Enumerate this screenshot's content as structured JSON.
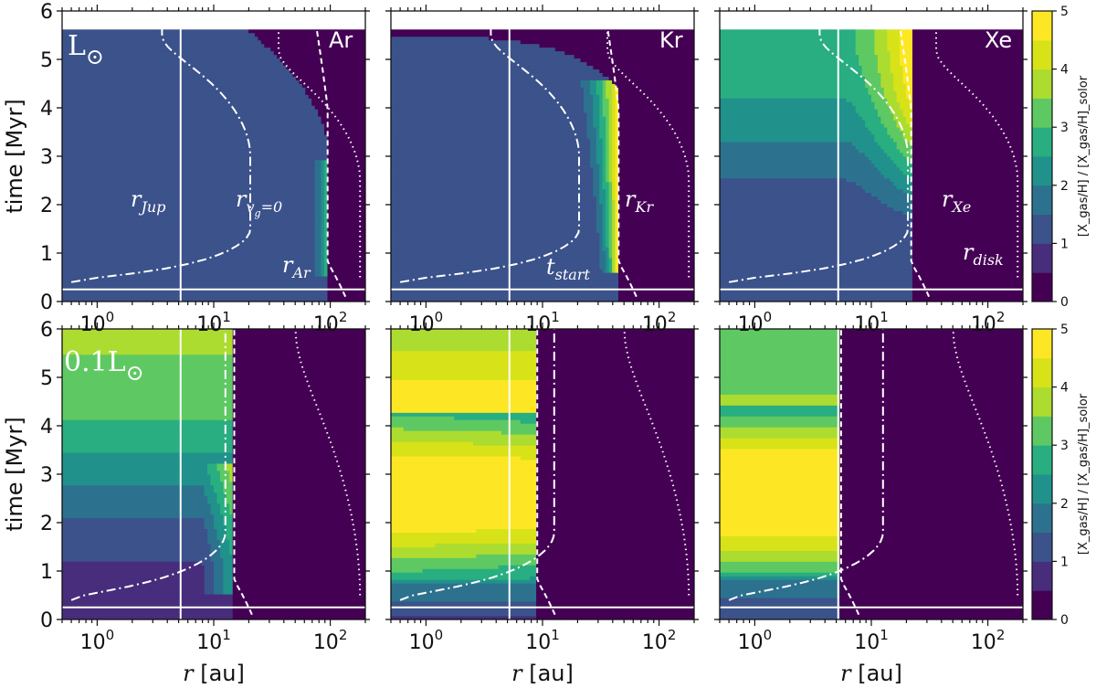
{
  "chart_data": {
    "type": "heatmap",
    "x_scale": "log",
    "x_range_au": [
      0.5,
      200
    ],
    "y_range_myr": [
      0,
      6
    ],
    "x_ticks": [
      "10^0",
      "10^1",
      "10^2"
    ],
    "y_ticks": [
      "0",
      "1",
      "2",
      "3",
      "4",
      "5",
      "6"
    ],
    "xlabel": "r [au]",
    "ylabel": "time [Myr]",
    "colorbar": {
      "label": "[X_gas/H] / [X_gas/H]_solor",
      "range": [
        0,
        5
      ],
      "ticks": [
        "0",
        "1",
        "2",
        "3",
        "4",
        "5"
      ],
      "levels": 10,
      "palette": [
        "#440154",
        "#472d7b",
        "#3b528b",
        "#2c728e",
        "#21918c",
        "#28ae80",
        "#5ec962",
        "#addc30",
        "#d8e219",
        "#fde725"
      ]
    },
    "reference_lines": {
      "r_jup_au": 5.2,
      "t_start_myr": 0.25
    },
    "panels": [
      {
        "row": 0,
        "col": 0,
        "element": "Ar",
        "luminosity": "L⊙",
        "snowline_label": "r_Ar",
        "snowline_au": 95,
        "disk_dissipation_myr": 5.7,
        "peak_enhancement": 2.5
      },
      {
        "row": 0,
        "col": 1,
        "element": "Kr",
        "luminosity": "L⊙",
        "snowline_label": "r_Kr",
        "snowline_au": 45,
        "disk_dissipation_myr": 5.7,
        "peak_enhancement": 5
      },
      {
        "row": 0,
        "col": 2,
        "element": "Xe",
        "luminosity": "L⊙",
        "snowline_label": "r_Xe",
        "snowline_au": 22,
        "disk_dissipation_myr": 5.7,
        "peak_enhancement": 5
      },
      {
        "row": 1,
        "col": 0,
        "element": "Ar",
        "luminosity": "0.1L⊙",
        "snowline_au": 15,
        "peak_enhancement": 4.5
      },
      {
        "row": 1,
        "col": 1,
        "element": "Kr",
        "luminosity": "0.1L⊙",
        "snowline_au": 9,
        "peak_enhancement": 5
      },
      {
        "row": 1,
        "col": 2,
        "element": "Xe",
        "luminosity": "0.1L⊙",
        "snowline_au": 5.5,
        "peak_enhancement": 5
      }
    ],
    "annotations": {
      "r_jup": "r",
      "r_jup_sub": "Jup",
      "r_vg0": "r",
      "r_vg0_sub": "v",
      "r_vg0_subsub": "g",
      "r_vg0_tail": "=0",
      "r_ar": "r",
      "r_ar_sub": "Ar",
      "r_kr": "r",
      "r_kr_sub": "Kr",
      "r_xe": "r",
      "r_xe_sub": "Xe",
      "t_start": "t",
      "t_start_sub": "start",
      "r_disk": "r",
      "r_disk_sub": "disk"
    },
    "panel_labels": {
      "top_left": "L",
      "bottom_left": "0.1L"
    }
  }
}
